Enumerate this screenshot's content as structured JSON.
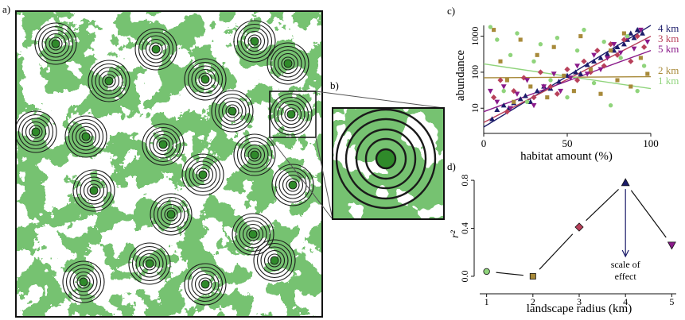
{
  "panel_labels": {
    "a": "a)",
    "b": "b)",
    "c": "c)",
    "d": "d)"
  },
  "colors": {
    "habitat": "#2f8a2a",
    "ring": "#1a1a1a",
    "km1": "#90d47c",
    "km2": "#a88a3a",
    "km3": "#b8405a",
    "km4": "#1c1c6a",
    "km5": "#8a1a8a"
  },
  "chart_data": [
    {
      "type": "scatter",
      "panel": "c)",
      "xlabel": "habitat amount (%)",
      "ylabel": "abundance",
      "xlim": [
        0,
        100
      ],
      "ylim_log10": [
        0.3,
        3.3
      ],
      "y_scale": "log",
      "x_ticks": [
        0,
        50,
        100
      ],
      "y_ticks": [
        10,
        100,
        1000
      ],
      "legend_placement": "right",
      "series": [
        {
          "name": "4 km",
          "color_key": "km4",
          "marker": "triangle-up",
          "trend": [
            [
              0,
              3
            ],
            [
              100,
              2000
            ]
          ],
          "points": [
            [
              5,
              5
            ],
            [
              8,
              9
            ],
            [
              12,
              12
            ],
            [
              15,
              10
            ],
            [
              18,
              14
            ],
            [
              22,
              18
            ],
            [
              25,
              22
            ],
            [
              28,
              15
            ],
            [
              32,
              30
            ],
            [
              36,
              40
            ],
            [
              40,
              35
            ],
            [
              45,
              55
            ],
            [
              50,
              80
            ],
            [
              55,
              100
            ],
            [
              58,
              90
            ],
            [
              62,
              160
            ],
            [
              66,
              200
            ],
            [
              70,
              250
            ],
            [
              74,
              320
            ],
            [
              78,
              400
            ],
            [
              80,
              500
            ],
            [
              84,
              600
            ],
            [
              86,
              800
            ],
            [
              88,
              1200
            ],
            [
              90,
              900
            ],
            [
              92,
              1500
            ],
            [
              95,
              1200
            ]
          ]
        },
        {
          "name": "3 km",
          "color_key": "km3",
          "marker": "diamond",
          "trend": [
            [
              0,
              4
            ],
            [
              100,
              1000
            ]
          ],
          "points": [
            [
              6,
              20
            ],
            [
              10,
              60
            ],
            [
              14,
              8
            ],
            [
              18,
              30
            ],
            [
              24,
              70
            ],
            [
              30,
              20
            ],
            [
              34,
              100
            ],
            [
              40,
              40
            ],
            [
              44,
              25
            ],
            [
              50,
              120
            ],
            [
              56,
              60
            ],
            [
              60,
              200
            ],
            [
              64,
              100
            ],
            [
              68,
              400
            ],
            [
              72,
              150
            ],
            [
              76,
              600
            ],
            [
              80,
              300
            ],
            [
              84,
              800
            ],
            [
              88,
              200
            ],
            [
              92,
              1000
            ],
            [
              96,
              500
            ]
          ]
        },
        {
          "name": "5 km",
          "color_key": "km5",
          "marker": "triangle-down",
          "trend": [
            [
              0,
              8
            ],
            [
              100,
              400
            ]
          ],
          "points": [
            [
              4,
              30
            ],
            [
              8,
              15
            ],
            [
              12,
              40
            ],
            [
              16,
              10
            ],
            [
              20,
              25
            ],
            [
              26,
              60
            ],
            [
              30,
              12
            ],
            [
              36,
              40
            ],
            [
              42,
              90
            ],
            [
              46,
              30
            ],
            [
              52,
              70
            ],
            [
              56,
              150
            ],
            [
              62,
              90
            ],
            [
              66,
              300
            ],
            [
              70,
              120
            ],
            [
              74,
              250
            ],
            [
              78,
              600
            ],
            [
              82,
              350
            ],
            [
              86,
              900
            ],
            [
              90,
              450
            ],
            [
              94,
              1500
            ],
            [
              98,
              700
            ]
          ]
        },
        {
          "name": "2 km",
          "color_key": "km2",
          "marker": "square",
          "trend": [
            [
              0,
              70
            ],
            [
              100,
              75
            ]
          ],
          "points": [
            [
              6,
              1500
            ],
            [
              10,
              200
            ],
            [
              14,
              60
            ],
            [
              18,
              15
            ],
            [
              22,
              800
            ],
            [
              28,
              40
            ],
            [
              32,
              300
            ],
            [
              38,
              20
            ],
            [
              42,
              500
            ],
            [
              48,
              80
            ],
            [
              54,
              30
            ],
            [
              58,
              1000
            ],
            [
              64,
              120
            ],
            [
              70,
              25
            ],
            [
              76,
              400
            ],
            [
              80,
              60
            ],
            [
              84,
              1200
            ],
            [
              88,
              40
            ],
            [
              94,
              250
            ],
            [
              98,
              90
            ]
          ]
        },
        {
          "name": "1 km",
          "color_key": "km1",
          "marker": "circle",
          "trend": [
            [
              0,
              170
            ],
            [
              100,
              35
            ]
          ],
          "points": [
            [
              4,
              1800
            ],
            [
              8,
              800
            ],
            [
              12,
              30
            ],
            [
              16,
              300
            ],
            [
              20,
              1200
            ],
            [
              26,
              15
            ],
            [
              30,
              200
            ],
            [
              34,
              600
            ],
            [
              40,
              60
            ],
            [
              44,
              900
            ],
            [
              50,
              20
            ],
            [
              56,
              400
            ],
            [
              60,
              1500
            ],
            [
              66,
              50
            ],
            [
              72,
              700
            ],
            [
              76,
              12
            ],
            [
              82,
              250
            ],
            [
              86,
              1000
            ],
            [
              92,
              30
            ],
            [
              96,
              150
            ]
          ]
        }
      ]
    },
    {
      "type": "scatter",
      "panel": "d)",
      "xlabel": "landscape radius (km)",
      "ylabel": "r²",
      "xlim": [
        0.8,
        5.2
      ],
      "ylim": [
        -0.04,
        0.86
      ],
      "x_ticks": [
        1,
        2,
        3,
        4,
        5
      ],
      "y_ticks": [
        0.0,
        0.4,
        0.8
      ],
      "y_tick_labels": [
        "0.0",
        "0.4",
        "0.8"
      ],
      "points": [
        {
          "x": 1,
          "y": 0.04,
          "color_key": "km1",
          "marker": "circle"
        },
        {
          "x": 2,
          "y": 0.0,
          "color_key": "km2",
          "marker": "square"
        },
        {
          "x": 3,
          "y": 0.41,
          "color_key": "km3",
          "marker": "diamond"
        },
        {
          "x": 4,
          "y": 0.78,
          "color_key": "km4",
          "marker": "triangle-up"
        },
        {
          "x": 5,
          "y": 0.26,
          "color_key": "km5",
          "marker": "triangle-down"
        }
      ],
      "annotation": {
        "line1": "scale of",
        "line2": "effect",
        "x": 4
      }
    }
  ]
}
